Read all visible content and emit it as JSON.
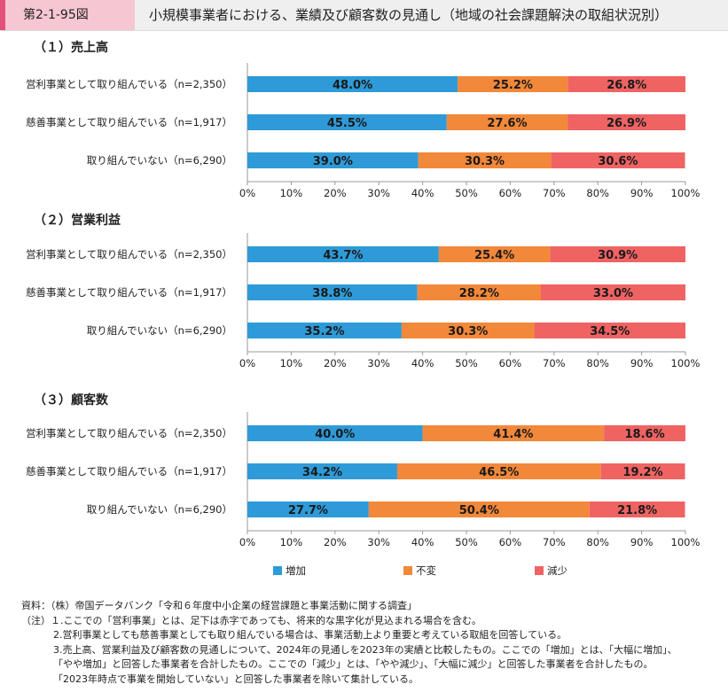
{
  "header": {
    "figure_label": "第2-1-95図",
    "title": "小規模事業者における、業績及び顧客数の見通し（地域の社会課題解決の取組状況別）"
  },
  "colors": {
    "increase": "#2e9ad8",
    "unchanged": "#f2883a",
    "decrease": "#ef6363",
    "axis": "#999999"
  },
  "chart_data": [
    {
      "type": "bar",
      "orientation": "horizontal",
      "stacked": true,
      "title": "（１）売上高",
      "categories": [
        "営利事業として取り組んでいる（n=2,350）",
        "慈善事業として取り組んでいる（n=1,917）",
        "取り組んでいない（n=6,290）"
      ],
      "series": [
        {
          "name": "増加",
          "values": [
            48.0,
            45.5,
            39.0
          ]
        },
        {
          "name": "不変",
          "values": [
            25.2,
            27.6,
            30.3
          ]
        },
        {
          "name": "減少",
          "values": [
            26.8,
            26.9,
            30.6
          ]
        }
      ],
      "data_labels": [
        [
          "48.0%",
          "25.2%",
          "26.8%"
        ],
        [
          "45.5%",
          "27.6%",
          "26.9%"
        ],
        [
          "39.0%",
          "30.3%",
          "30.6%"
        ]
      ],
      "xlim": [
        0,
        100
      ],
      "x_ticks": [
        "0%",
        "10%",
        "20%",
        "30%",
        "40%",
        "50%",
        "60%",
        "70%",
        "80%",
        "90%",
        "100%"
      ]
    },
    {
      "type": "bar",
      "orientation": "horizontal",
      "stacked": true,
      "title": "（２）営業利益",
      "categories": [
        "営利事業として取り組んでいる（n=2,350）",
        "慈善事業として取り組んでいる（n=1,917）",
        "取り組んでいない（n=6,290）"
      ],
      "series": [
        {
          "name": "増加",
          "values": [
            43.7,
            38.8,
            35.2
          ]
        },
        {
          "name": "不変",
          "values": [
            25.4,
            28.2,
            30.3
          ]
        },
        {
          "name": "減少",
          "values": [
            30.9,
            33.0,
            34.5
          ]
        }
      ],
      "data_labels": [
        [
          "43.7%",
          "25.4%",
          "30.9%"
        ],
        [
          "38.8%",
          "28.2%",
          "33.0%"
        ],
        [
          "35.2%",
          "30.3%",
          "34.5%"
        ]
      ],
      "xlim": [
        0,
        100
      ],
      "x_ticks": [
        "0%",
        "10%",
        "20%",
        "30%",
        "40%",
        "50%",
        "60%",
        "70%",
        "80%",
        "90%",
        "100%"
      ]
    },
    {
      "type": "bar",
      "orientation": "horizontal",
      "stacked": true,
      "title": "（３）顧客数",
      "categories": [
        "営利事業として取り組んでいる（n=2,350）",
        "慈善事業として取り組んでいる（n=1,917）",
        "取り組んでいない（n=6,290）"
      ],
      "series": [
        {
          "name": "増加",
          "values": [
            40.0,
            34.2,
            27.7
          ]
        },
        {
          "name": "不変",
          "values": [
            41.4,
            46.5,
            50.4
          ]
        },
        {
          "name": "減少",
          "values": [
            18.6,
            19.2,
            21.8
          ]
        }
      ],
      "data_labels": [
        [
          "40.0%",
          "41.4%",
          "18.6%"
        ],
        [
          "34.2%",
          "46.5%",
          "19.2%"
        ],
        [
          "27.7%",
          "50.4%",
          "21.8%"
        ]
      ],
      "xlim": [
        0,
        100
      ],
      "x_ticks": [
        "0%",
        "10%",
        "20%",
        "30%",
        "40%",
        "50%",
        "60%",
        "70%",
        "80%",
        "90%",
        "100%"
      ]
    }
  ],
  "legend": {
    "placement": "bottom",
    "items": [
      "増加",
      "不変",
      "減少"
    ]
  },
  "notes": [
    "資料：（株）帝国データバンク「令和６年度中小企業の経営課題と事業活動に関する調査」",
    "（注）１.ここでの「営利事業」とは、足下は赤字であっても、将来的な黒字化が見込まれる場合を含む。",
    "2.営利事業としても慈善事業としても取り組んでいる場合は、事業活動上より重要と考えている取組を回答している。",
    "3.売上高、営業利益及び顧客数の見通しについて、2024年の見通しを2023年の実績と比較したもの。ここでの「増加」とは、「大幅に増加」、",
    "「やや増加」と回答した事業者を合計したもの。ここでの「減少」とは、「やや減少」、「大幅に減少」と回答した事業者を合計したもの。",
    "「2023年時点で事業を開始していない」と回答した事業者を除いて集計している。"
  ]
}
